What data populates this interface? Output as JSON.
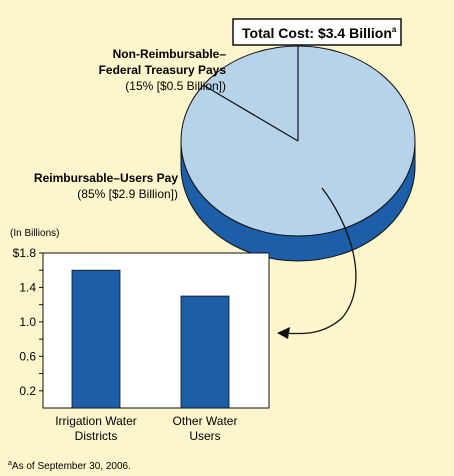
{
  "total_box": {
    "text": "Total Cost: $3.4 Billion",
    "superscript": "a"
  },
  "pie_labels": {
    "non_reimbursable": {
      "line1": "Non-Reimbursable–",
      "line2": "Federal Treasury Pays",
      "line3": "(15% [$0.5 Billion])"
    },
    "reimbursable": {
      "line1": "Reimbursable–Users Pay",
      "line2": "(85% [$2.9 Billion])"
    }
  },
  "footnote": {
    "marker": "a",
    "text": "As of September 30, 2006."
  },
  "colors": {
    "background": "#fdf6cc",
    "pie_top": "#b7d3ea",
    "pie_side": "#1c5ea8",
    "bar": "#1c5ea8",
    "plot_bg": "#ffffff"
  },
  "chart_data": [
    {
      "type": "pie",
      "slices": [
        {
          "label": "Non-Reimbursable–Federal Treasury Pays",
          "value": 15,
          "amount_billion": 0.5
        },
        {
          "label": "Reimbursable–Users Pay",
          "value": 85,
          "amount_billion": 2.9
        }
      ]
    },
    {
      "type": "bar",
      "unit_label": "(In Billions)",
      "categories": [
        {
          "line1": "Irrigation Water",
          "line2": "Districts"
        },
        {
          "line1": "Other Water",
          "line2": "Users"
        }
      ],
      "values": [
        1.6,
        1.3
      ],
      "ylim": [
        0,
        1.8
      ],
      "yticks": [
        {
          "value": 1.8,
          "label": "$1.8"
        },
        {
          "value": 1.4,
          "label": "1.4"
        },
        {
          "value": 1.0,
          "label": "1.0"
        },
        {
          "value": 0.6,
          "label": "0.6"
        },
        {
          "value": 0.2,
          "label": "0.2"
        }
      ],
      "grid": false
    }
  ]
}
